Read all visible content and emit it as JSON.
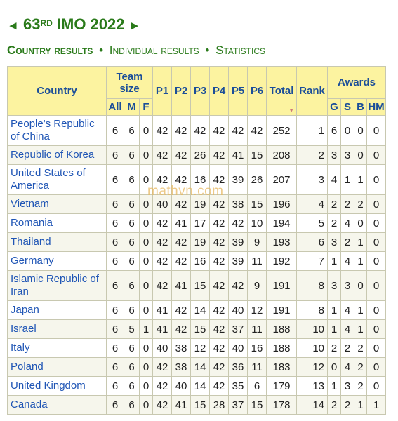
{
  "header": {
    "title_prefix": "63",
    "title_sup": "RD",
    "title_suffix": " IMO 2022 ",
    "left_arrow": "◄",
    "right_arrow": "►"
  },
  "nav": {
    "current": "Country results",
    "sep1": "•",
    "individual": "Individual results",
    "sep2": "•",
    "statistics": "Statistics"
  },
  "watermark": "mathvn.com",
  "table": {
    "headers": {
      "country": "Country",
      "team_size": "Team size",
      "all": "All",
      "m": "M",
      "f": "F",
      "p1": "P1",
      "p2": "P2",
      "p3": "P3",
      "p4": "P4",
      "p5": "P5",
      "p6": "P6",
      "total": "Total",
      "rank": "Rank",
      "awards": "Awards",
      "g": "G",
      "s": "S",
      "b": "B",
      "hm": "HM"
    },
    "rows": [
      {
        "country": "People's Republic of China",
        "all": "6",
        "m": "6",
        "f": "0",
        "p1": "42",
        "p2": "42",
        "p3": "42",
        "p4": "42",
        "p5": "42",
        "p6": "42",
        "total": "252",
        "rank": "1",
        "g": "6",
        "s": "0",
        "b": "0",
        "hm": "0"
      },
      {
        "country": "Republic of Korea",
        "all": "6",
        "m": "6",
        "f": "0",
        "p1": "42",
        "p2": "42",
        "p3": "26",
        "p4": "42",
        "p5": "41",
        "p6": "15",
        "total": "208",
        "rank": "2",
        "g": "3",
        "s": "3",
        "b": "0",
        "hm": "0"
      },
      {
        "country": "United States of America",
        "all": "6",
        "m": "6",
        "f": "0",
        "p1": "42",
        "p2": "42",
        "p3": "16",
        "p4": "42",
        "p5": "39",
        "p6": "26",
        "total": "207",
        "rank": "3",
        "g": "4",
        "s": "1",
        "b": "1",
        "hm": "0"
      },
      {
        "country": "Vietnam",
        "all": "6",
        "m": "6",
        "f": "0",
        "p1": "40",
        "p2": "42",
        "p3": "19",
        "p4": "42",
        "p5": "38",
        "p6": "15",
        "total": "196",
        "rank": "4",
        "g": "2",
        "s": "2",
        "b": "2",
        "hm": "0"
      },
      {
        "country": "Romania",
        "all": "6",
        "m": "6",
        "f": "0",
        "p1": "42",
        "p2": "41",
        "p3": "17",
        "p4": "42",
        "p5": "42",
        "p6": "10",
        "total": "194",
        "rank": "5",
        "g": "2",
        "s": "4",
        "b": "0",
        "hm": "0"
      },
      {
        "country": "Thailand",
        "all": "6",
        "m": "6",
        "f": "0",
        "p1": "42",
        "p2": "42",
        "p3": "19",
        "p4": "42",
        "p5": "39",
        "p6": "9",
        "total": "193",
        "rank": "6",
        "g": "3",
        "s": "2",
        "b": "1",
        "hm": "0"
      },
      {
        "country": "Germany",
        "all": "6",
        "m": "6",
        "f": "0",
        "p1": "42",
        "p2": "42",
        "p3": "16",
        "p4": "42",
        "p5": "39",
        "p6": "11",
        "total": "192",
        "rank": "7",
        "g": "1",
        "s": "4",
        "b": "1",
        "hm": "0"
      },
      {
        "country": "Islamic Republic of Iran",
        "all": "6",
        "m": "6",
        "f": "0",
        "p1": "42",
        "p2": "41",
        "p3": "15",
        "p4": "42",
        "p5": "42",
        "p6": "9",
        "total": "191",
        "rank": "8",
        "g": "3",
        "s": "3",
        "b": "0",
        "hm": "0"
      },
      {
        "country": "Japan",
        "all": "6",
        "m": "6",
        "f": "0",
        "p1": "41",
        "p2": "42",
        "p3": "14",
        "p4": "42",
        "p5": "40",
        "p6": "12",
        "total": "191",
        "rank": "8",
        "g": "1",
        "s": "4",
        "b": "1",
        "hm": "0"
      },
      {
        "country": "Israel",
        "all": "6",
        "m": "5",
        "f": "1",
        "p1": "41",
        "p2": "42",
        "p3": "15",
        "p4": "42",
        "p5": "37",
        "p6": "11",
        "total": "188",
        "rank": "10",
        "g": "1",
        "s": "4",
        "b": "1",
        "hm": "0"
      },
      {
        "country": "Italy",
        "all": "6",
        "m": "6",
        "f": "0",
        "p1": "40",
        "p2": "38",
        "p3": "12",
        "p4": "42",
        "p5": "40",
        "p6": "16",
        "total": "188",
        "rank": "10",
        "g": "2",
        "s": "2",
        "b": "2",
        "hm": "0"
      },
      {
        "country": "Poland",
        "all": "6",
        "m": "6",
        "f": "0",
        "p1": "42",
        "p2": "38",
        "p3": "14",
        "p4": "42",
        "p5": "36",
        "p6": "11",
        "total": "183",
        "rank": "12",
        "g": "0",
        "s": "4",
        "b": "2",
        "hm": "0"
      },
      {
        "country": "United Kingdom",
        "all": "6",
        "m": "6",
        "f": "0",
        "p1": "42",
        "p2": "40",
        "p3": "14",
        "p4": "42",
        "p5": "35",
        "p6": "6",
        "total": "179",
        "rank": "13",
        "g": "1",
        "s": "3",
        "b": "2",
        "hm": "0"
      },
      {
        "country": "Canada",
        "all": "6",
        "m": "6",
        "f": "0",
        "p1": "42",
        "p2": "41",
        "p3": "15",
        "p4": "28",
        "p5": "37",
        "p6": "15",
        "total": "178",
        "rank": "14",
        "g": "2",
        "s": "2",
        "b": "1",
        "hm": "1"
      }
    ]
  },
  "colors": {
    "header_bg": "#fcf3a0",
    "header_text": "#1b4e99",
    "title_green": "#2a7a1a",
    "link_blue": "#1f55b5"
  }
}
